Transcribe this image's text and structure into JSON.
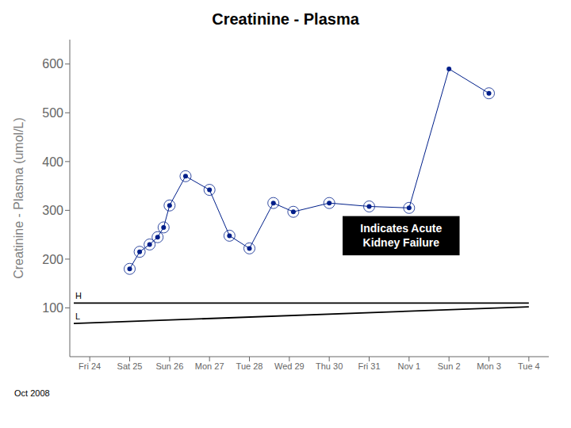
{
  "chart_data": {
    "type": "line",
    "title": "Creatinine - Plasma",
    "y_label": "Creatinine - Plasma (umol/L)",
    "footer": "Oct 2008",
    "x": [
      1.0,
      1.25,
      1.5,
      1.7,
      1.85,
      2.0,
      2.4,
      3.0,
      3.5,
      4.0,
      4.6,
      5.1,
      6.0,
      7.0,
      8.0,
      9.0,
      10.0
    ],
    "values": [
      180,
      215,
      230,
      245,
      265,
      310,
      370,
      342,
      248,
      222,
      315,
      297,
      315,
      308,
      305,
      590,
      540
    ],
    "circled": [
      true,
      true,
      true,
      true,
      true,
      true,
      true,
      true,
      true,
      true,
      true,
      true,
      true,
      true,
      true,
      false,
      true
    ],
    "color": "#001f8a",
    "xlim": [
      -0.5,
      11.5
    ],
    "xticks": [
      {
        "value": 0,
        "label": "Fri 24"
      },
      {
        "value": 1,
        "label": "Sat 25"
      },
      {
        "value": 2,
        "label": "Sun 26"
      },
      {
        "value": 3,
        "label": "Mon 27"
      },
      {
        "value": 4,
        "label": "Tue 28"
      },
      {
        "value": 5,
        "label": "Wed 29"
      },
      {
        "value": 6,
        "label": "Thu 30"
      },
      {
        "value": 7,
        "label": "Fri 31"
      },
      {
        "value": 8,
        "label": "Nov 1"
      },
      {
        "value": 9,
        "label": "Sun 2"
      },
      {
        "value": 10,
        "label": "Mon 3"
      },
      {
        "value": 11,
        "label": "Tue 4"
      }
    ],
    "ylim": [
      0,
      650
    ],
    "yticks": [
      100,
      200,
      300,
      400,
      500,
      600
    ],
    "grid": false,
    "reference_lines": [
      {
        "label": "H",
        "x": [
          -0.4,
          11.0
        ],
        "y": [
          110,
          110
        ]
      },
      {
        "label": "L",
        "x": [
          -0.4,
          11.0
        ],
        "y": [
          68,
          102.2
        ]
      }
    ],
    "annotations": [
      {
        "text": "Indicates Acute\nKidney Failure",
        "x": 7.8,
        "y": 248
      }
    ]
  }
}
